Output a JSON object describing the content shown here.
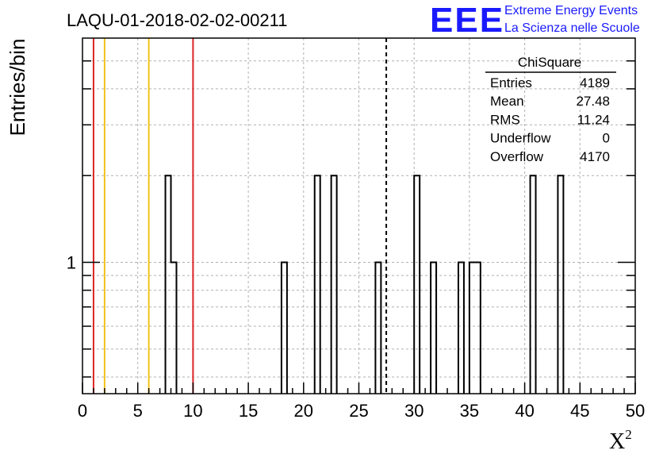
{
  "chart_data": {
    "type": "bar",
    "title": "LAQU-01-2018-02-02-00211",
    "ylabel": "Entries/bin",
    "xlabel": "X",
    "xlabel_superscript": "2",
    "xlim": [
      0,
      50
    ],
    "y_scale": "log",
    "ylim": [
      0.35,
      6
    ],
    "grid": true,
    "x_ticks": [
      "0",
      "5",
      "10",
      "15",
      "20",
      "25",
      "30",
      "35",
      "40",
      "45",
      "50"
    ],
    "y_tick_labels": [
      "1"
    ],
    "bin_width": 0.5,
    "bins": [
      {
        "x": 7.5,
        "y": 2
      },
      {
        "x": 8.0,
        "y": 1
      },
      {
        "x": 18.0,
        "y": 1
      },
      {
        "x": 21.0,
        "y": 2
      },
      {
        "x": 22.5,
        "y": 2
      },
      {
        "x": 26.5,
        "y": 1
      },
      {
        "x": 30.0,
        "y": 2
      },
      {
        "x": 31.5,
        "y": 1
      },
      {
        "x": 34.0,
        "y": 1
      },
      {
        "x": 35.0,
        "y": 1
      },
      {
        "x": 35.5,
        "y": 1
      },
      {
        "x": 40.5,
        "y": 2
      },
      {
        "x": 43.0,
        "y": 2
      }
    ],
    "vertical_lines": [
      {
        "x": 1,
        "color": "#dd2222",
        "style": "solid"
      },
      {
        "x": 2,
        "color": "#f2c21a",
        "style": "solid"
      },
      {
        "x": 6,
        "color": "#f2c21a",
        "style": "solid"
      },
      {
        "x": 10,
        "color": "#dd2222",
        "style": "solid"
      },
      {
        "x": 27.48,
        "color": "#000000",
        "style": "dashed"
      }
    ],
    "stats_box": {
      "title": "ChiSquare",
      "rows": [
        {
          "label": "Entries",
          "value": "4189"
        },
        {
          "label": "Mean",
          "value": "27.48"
        },
        {
          "label": "RMS",
          "value": "11.24"
        },
        {
          "label": "Underflow",
          "value": "0"
        },
        {
          "label": "Overflow",
          "value": "4170"
        }
      ]
    }
  },
  "logo": {
    "mark": "EEE",
    "line1": "Extreme Energy Events",
    "line2": "La Scienza nelle Scuole"
  },
  "colors": {
    "logo": "#1a1aff",
    "grid": "#b0b0b0",
    "red_line": "#dd2222",
    "yellow_line": "#f2c21a"
  }
}
